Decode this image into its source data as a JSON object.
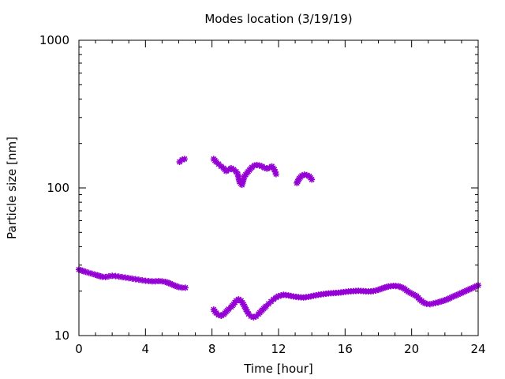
{
  "chart_data": {
    "type": "scatter",
    "title": "Modes location (3/19/19)",
    "xlabel": "Time [hour]",
    "ylabel": "Particle size [nm]",
    "xlim": [
      0,
      24
    ],
    "ylim": [
      10,
      1000
    ],
    "yscale": "log",
    "grid": false,
    "legend": "none",
    "xticks": [
      0,
      4,
      8,
      12,
      16,
      20,
      24
    ],
    "xtick_labels": [
      "0",
      "4",
      "8",
      "12",
      "16",
      "20",
      "24"
    ],
    "yticks": [
      10,
      100,
      1000
    ],
    "ytick_labels": [
      "10",
      "100",
      "1000"
    ],
    "marker_color": "#9400d3",
    "series": [
      {
        "points": [
          [
            0.0,
            28.0
          ],
          [
            0.2,
            27.5
          ],
          [
            0.4,
            27.0
          ],
          [
            0.6,
            26.6
          ],
          [
            0.8,
            26.2
          ],
          [
            1.0,
            25.8
          ],
          [
            1.2,
            25.4
          ],
          [
            1.4,
            25.0
          ],
          [
            1.6,
            24.9
          ],
          [
            1.8,
            25.2
          ],
          [
            2.0,
            25.4
          ],
          [
            2.2,
            25.3
          ],
          [
            2.4,
            25.1
          ],
          [
            2.6,
            24.9
          ],
          [
            2.8,
            24.7
          ],
          [
            3.0,
            24.5
          ],
          [
            3.2,
            24.3
          ],
          [
            3.4,
            24.1
          ],
          [
            3.6,
            23.9
          ],
          [
            3.8,
            23.7
          ],
          [
            4.0,
            23.5
          ],
          [
            4.2,
            23.4
          ],
          [
            4.4,
            23.3
          ],
          [
            4.6,
            23.3
          ],
          [
            4.8,
            23.4
          ],
          [
            5.0,
            23.3
          ],
          [
            5.2,
            23.1
          ],
          [
            5.4,
            22.7
          ],
          [
            5.6,
            22.2
          ],
          [
            5.8,
            21.7
          ],
          [
            6.0,
            21.3
          ],
          [
            6.2,
            21.1
          ],
          [
            6.4,
            21.1
          ],
          [
            6.05,
            150
          ],
          [
            6.2,
            155
          ],
          [
            6.35,
            157
          ],
          [
            8.1,
            157
          ],
          [
            8.25,
            150
          ],
          [
            8.4,
            145
          ],
          [
            8.55,
            140
          ],
          [
            8.7,
            136
          ],
          [
            8.85,
            130
          ],
          [
            9.0,
            133
          ],
          [
            9.15,
            136
          ],
          [
            9.3,
            133
          ],
          [
            9.45,
            129
          ],
          [
            9.55,
            124
          ],
          [
            9.65,
            110
          ],
          [
            9.8,
            105
          ],
          [
            9.95,
            120
          ],
          [
            10.1,
            126
          ],
          [
            10.25,
            132
          ],
          [
            10.4,
            138
          ],
          [
            10.55,
            142
          ],
          [
            10.7,
            143
          ],
          [
            10.85,
            142
          ],
          [
            11.0,
            140
          ],
          [
            11.15,
            137
          ],
          [
            11.3,
            135
          ],
          [
            11.45,
            137
          ],
          [
            11.6,
            140
          ],
          [
            11.75,
            133
          ],
          [
            11.85,
            124
          ],
          [
            13.1,
            108
          ],
          [
            13.25,
            116
          ],
          [
            13.4,
            121
          ],
          [
            13.55,
            123
          ],
          [
            13.7,
            122
          ],
          [
            13.85,
            120
          ],
          [
            14.0,
            114
          ],
          [
            8.1,
            15.0
          ],
          [
            8.25,
            14.2
          ],
          [
            8.4,
            13.8
          ],
          [
            8.55,
            13.6
          ],
          [
            8.7,
            13.9
          ],
          [
            8.85,
            14.5
          ],
          [
            9.0,
            15.1
          ],
          [
            9.15,
            15.6
          ],
          [
            9.3,
            16.3
          ],
          [
            9.45,
            17.2
          ],
          [
            9.6,
            17.6
          ],
          [
            9.75,
            17.2
          ],
          [
            9.9,
            16.2
          ],
          [
            10.05,
            15.0
          ],
          [
            10.2,
            14.0
          ],
          [
            10.35,
            13.5
          ],
          [
            10.5,
            13.3
          ],
          [
            10.65,
            13.5
          ],
          [
            10.8,
            14.0
          ],
          [
            10.95,
            14.6
          ],
          [
            11.1,
            15.2
          ],
          [
            11.25,
            15.8
          ],
          [
            11.4,
            16.4
          ],
          [
            11.55,
            17.0
          ],
          [
            11.7,
            17.6
          ],
          [
            11.85,
            18.1
          ],
          [
            12.0,
            18.5
          ],
          [
            12.3,
            18.9
          ],
          [
            12.6,
            18.7
          ],
          [
            12.9,
            18.4
          ],
          [
            13.2,
            18.2
          ],
          [
            13.5,
            18.1
          ],
          [
            13.8,
            18.3
          ],
          [
            14.1,
            18.6
          ],
          [
            14.4,
            18.9
          ],
          [
            14.7,
            19.1
          ],
          [
            15.0,
            19.3
          ],
          [
            15.3,
            19.4
          ],
          [
            15.6,
            19.5
          ],
          [
            15.9,
            19.7
          ],
          [
            16.2,
            19.9
          ],
          [
            16.5,
            20.0
          ],
          [
            16.8,
            20.1
          ],
          [
            17.1,
            20.0
          ],
          [
            17.4,
            19.9
          ],
          [
            17.7,
            20.0
          ],
          [
            18.0,
            20.4
          ],
          [
            18.3,
            21.0
          ],
          [
            18.6,
            21.5
          ],
          [
            18.9,
            21.7
          ],
          [
            19.2,
            21.6
          ],
          [
            19.5,
            21.0
          ],
          [
            19.8,
            19.8
          ],
          [
            20.1,
            19.0
          ],
          [
            20.3,
            18.5
          ],
          [
            20.5,
            17.5
          ],
          [
            20.7,
            16.8
          ],
          [
            20.9,
            16.4
          ],
          [
            21.1,
            16.3
          ],
          [
            21.3,
            16.5
          ],
          [
            21.6,
            16.8
          ],
          [
            21.9,
            17.2
          ],
          [
            22.2,
            17.7
          ],
          [
            22.5,
            18.4
          ],
          [
            22.8,
            19.0
          ],
          [
            23.1,
            19.7
          ],
          [
            23.4,
            20.4
          ],
          [
            23.7,
            21.1
          ],
          [
            24.0,
            21.9
          ]
        ]
      }
    ]
  }
}
